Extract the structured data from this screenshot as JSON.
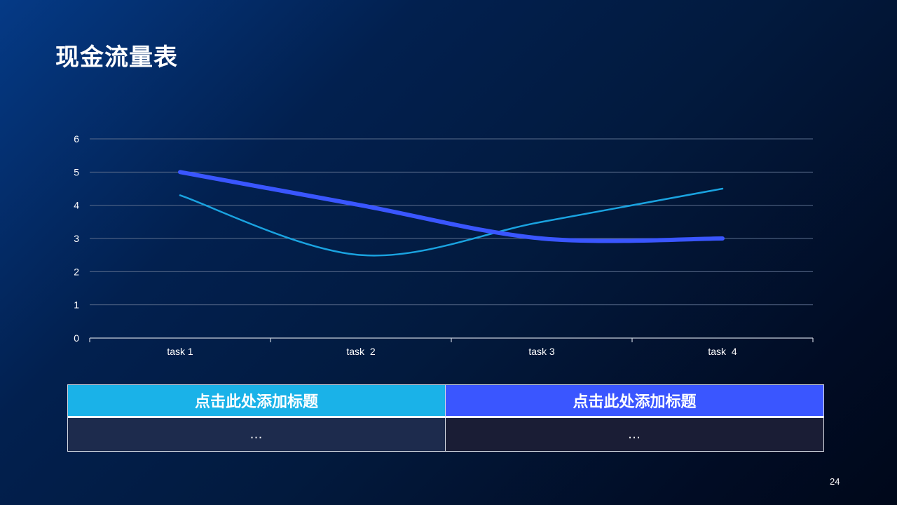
{
  "page": {
    "title": "现金流量表",
    "page_number": "24"
  },
  "chart_data": {
    "type": "line",
    "categories": [
      "task 1",
      "task  2",
      "task 3",
      "task  4"
    ],
    "ylim": [
      0,
      6
    ],
    "yticks": [
      0,
      1,
      2,
      3,
      4,
      5,
      6
    ],
    "grid": true,
    "series": [
      {
        "values": [
          5,
          4,
          3,
          3
        ],
        "color": "#3a56ff",
        "smooth": true
      },
      {
        "values": [
          4.3,
          2.5,
          3.5,
          4.5
        ],
        "color": "#1aa3e0",
        "smooth": true
      }
    ]
  },
  "table": {
    "headers": [
      {
        "label": "点击此处添加标题",
        "color": "#1ab2e8"
      },
      {
        "label": "点击此处添加标题",
        "color": "#3a56ff"
      }
    ],
    "cells": [
      "…",
      "…"
    ]
  }
}
